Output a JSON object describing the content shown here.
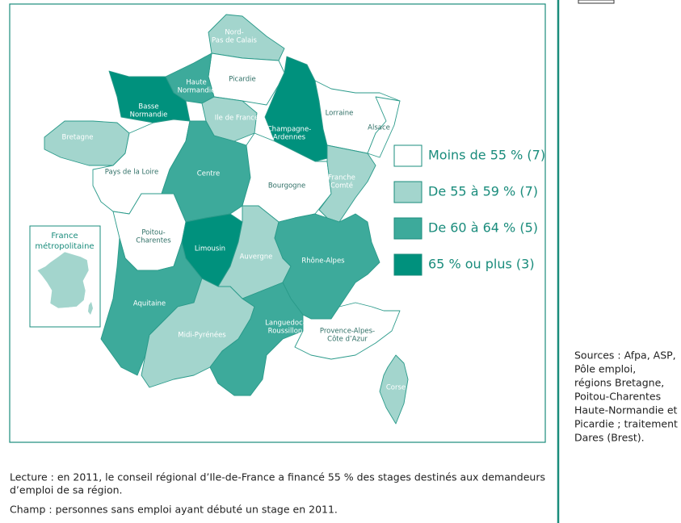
{
  "map": {
    "regions": [
      {
        "label": [
          "Nord-",
          "Pas de Calais"
        ],
        "class": 1
      },
      {
        "label": [
          "Picardie"
        ],
        "class": 0
      },
      {
        "label": [
          "Haute",
          "Normandie"
        ],
        "class": 2
      },
      {
        "label": [
          "Basse",
          "Normandie"
        ],
        "class": 3
      },
      {
        "label": [
          "Ile de France"
        ],
        "class": 1
      },
      {
        "label": [
          "Champagne-",
          "Ardennes"
        ],
        "class": 3
      },
      {
        "label": [
          "Lorraine"
        ],
        "class": 0
      },
      {
        "label": [
          "Alsace"
        ],
        "class": 0
      },
      {
        "label": [
          "Bretagne"
        ],
        "class": 1
      },
      {
        "label": [
          "Pays de la Loire"
        ],
        "class": 0
      },
      {
        "label": [
          "Centre"
        ],
        "class": 2
      },
      {
        "label": [
          "Bourgogne"
        ],
        "class": 0
      },
      {
        "label": [
          "Franche",
          "Comté"
        ],
        "class": 1
      },
      {
        "label": [
          "Poitou-",
          "Charentes"
        ],
        "class": 0
      },
      {
        "label": [
          "Limousin"
        ],
        "class": 3
      },
      {
        "label": [
          "Auvergne"
        ],
        "class": 1
      },
      {
        "label": [
          "Rhône-Alpes"
        ],
        "class": 2
      },
      {
        "label": [
          "Aquitaine"
        ],
        "class": 2
      },
      {
        "label": [
          "Midi-Pyrénées"
        ],
        "class": 1
      },
      {
        "label": [
          "Languedoc-",
          "Roussillon"
        ],
        "class": 2
      },
      {
        "label": [
          "Provence-Alpes-",
          "Côte d’Azur"
        ],
        "class": 0
      },
      {
        "label": [
          "Corse"
        ],
        "class": 1
      }
    ],
    "legend": [
      {
        "label": "Moins de 55 % (7)",
        "color": "#ffffff"
      },
      {
        "label": "De 55 à 59 % (7)",
        "color": "#a3d5cd"
      },
      {
        "label": "De 60 à 64 % (5)",
        "color": "#3daa9b"
      },
      {
        "label": "65 % ou plus (3)",
        "color": "#00917d"
      }
    ],
    "inset_title": [
      "France",
      "métropolitaine"
    ]
  },
  "sources": [
    "Sources : Afpa, ASP,",
    "Pôle emploi,",
    "régions Bretagne,",
    "Poitou-Charentes",
    "Haute-Normandie et",
    "Picardie ; traitement",
    "Dares (Brest)."
  ],
  "lecture": [
    "Lecture : en 2011, le conseil régional d’Ile-de-France a financé 55 % des stages destinés aux demandeurs",
    "d’emploi de sa région."
  ],
  "champ": "Champ : personnes sans emploi ayant débuté un stage en 2011."
}
